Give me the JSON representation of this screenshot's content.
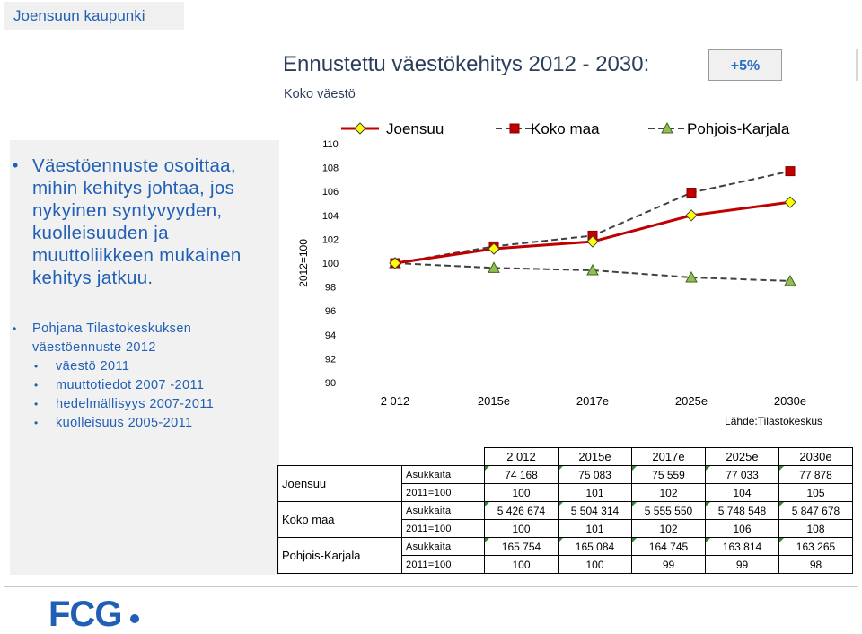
{
  "header": {
    "city": "Joensuun kaupunki"
  },
  "left": {
    "main_bullet": "Väestöennuste osoittaa, mihin kehitys johtaa, jos nykyinen syntyvyyden, kuolleisuuden ja muuttoliikkeen mukainen kehitys jatkuu.",
    "sub_lead": "Pohjana Tilastokeskuksen väestöennuste 2012",
    "sub_items": [
      "väestö 2011",
      "muuttotiedot 2007 -2011",
      "hedelmällisyys 2007-2011",
      "kuolleisuus 2005-2011"
    ]
  },
  "title": "Ennustettu väestökehitys 2012 - 2030:",
  "badge": "+5%",
  "subtitle": "Koko väestö",
  "chart_data": {
    "type": "line",
    "categories": [
      "2 012",
      "2015e",
      "2017e",
      "2025e",
      "2030e"
    ],
    "ylabel": "2012=100",
    "ylabel_suffix": ".",
    "ylim": [
      90,
      110
    ],
    "yticks": [
      "90",
      "92",
      "94",
      "96",
      "98",
      "100",
      "102",
      "104",
      "106",
      "108",
      "110"
    ],
    "grid": false,
    "legend": "top",
    "source": "Lähde:Tilastokeskus",
    "series": [
      {
        "name": "Joensuu",
        "values": [
          100,
          101.2,
          101.8,
          104.0,
          105.1
        ],
        "color": "#c00000",
        "marker": "diamond",
        "marker_fill": "#ffff00",
        "dash": "solid"
      },
      {
        "name": "Koko maa",
        "values": [
          100,
          101.4,
          102.3,
          105.9,
          107.7
        ],
        "color": "#404040",
        "marker": "square",
        "marker_fill": "#c00000",
        "dash": "dashed"
      },
      {
        "name": "Pohjois-Karjala",
        "values": [
          100,
          99.6,
          99.4,
          98.8,
          98.5
        ],
        "color": "#404040",
        "marker": "triangle",
        "marker_fill": "#90c050",
        "dash": "dashed"
      }
    ]
  },
  "table": {
    "headers": [
      "2 012",
      "2015e",
      "2017e",
      "2025e",
      "2030e"
    ],
    "groups": [
      {
        "region": "Joensuu",
        "rows": [
          {
            "label": "Asukkaita",
            "values": [
              "74 168",
              "75 083",
              "75 559",
              "77 033",
              "77 878"
            ]
          },
          {
            "label": "2011=100",
            "values": [
              "100",
              "101",
              "102",
              "104",
              "105"
            ]
          }
        ]
      },
      {
        "region": "Koko maa",
        "rows": [
          {
            "label": "Asukkaita",
            "values": [
              "5 426 674",
              "5 504 314",
              "5 555 550",
              "5 748 548",
              "5 847 678"
            ]
          },
          {
            "label": "2011=100",
            "values": [
              "100",
              "101",
              "102",
              "106",
              "108"
            ]
          }
        ]
      },
      {
        "region": "Pohjois-Karjala",
        "rows": [
          {
            "label": "Asukkaita",
            "values": [
              "165 754",
              "165 084",
              "164 745",
              "163 814",
              "163 265"
            ]
          },
          {
            "label": "2011=100",
            "values": [
              "100",
              "100",
              "99",
              "99",
              "98"
            ]
          }
        ]
      }
    ]
  },
  "logo": "FCG"
}
